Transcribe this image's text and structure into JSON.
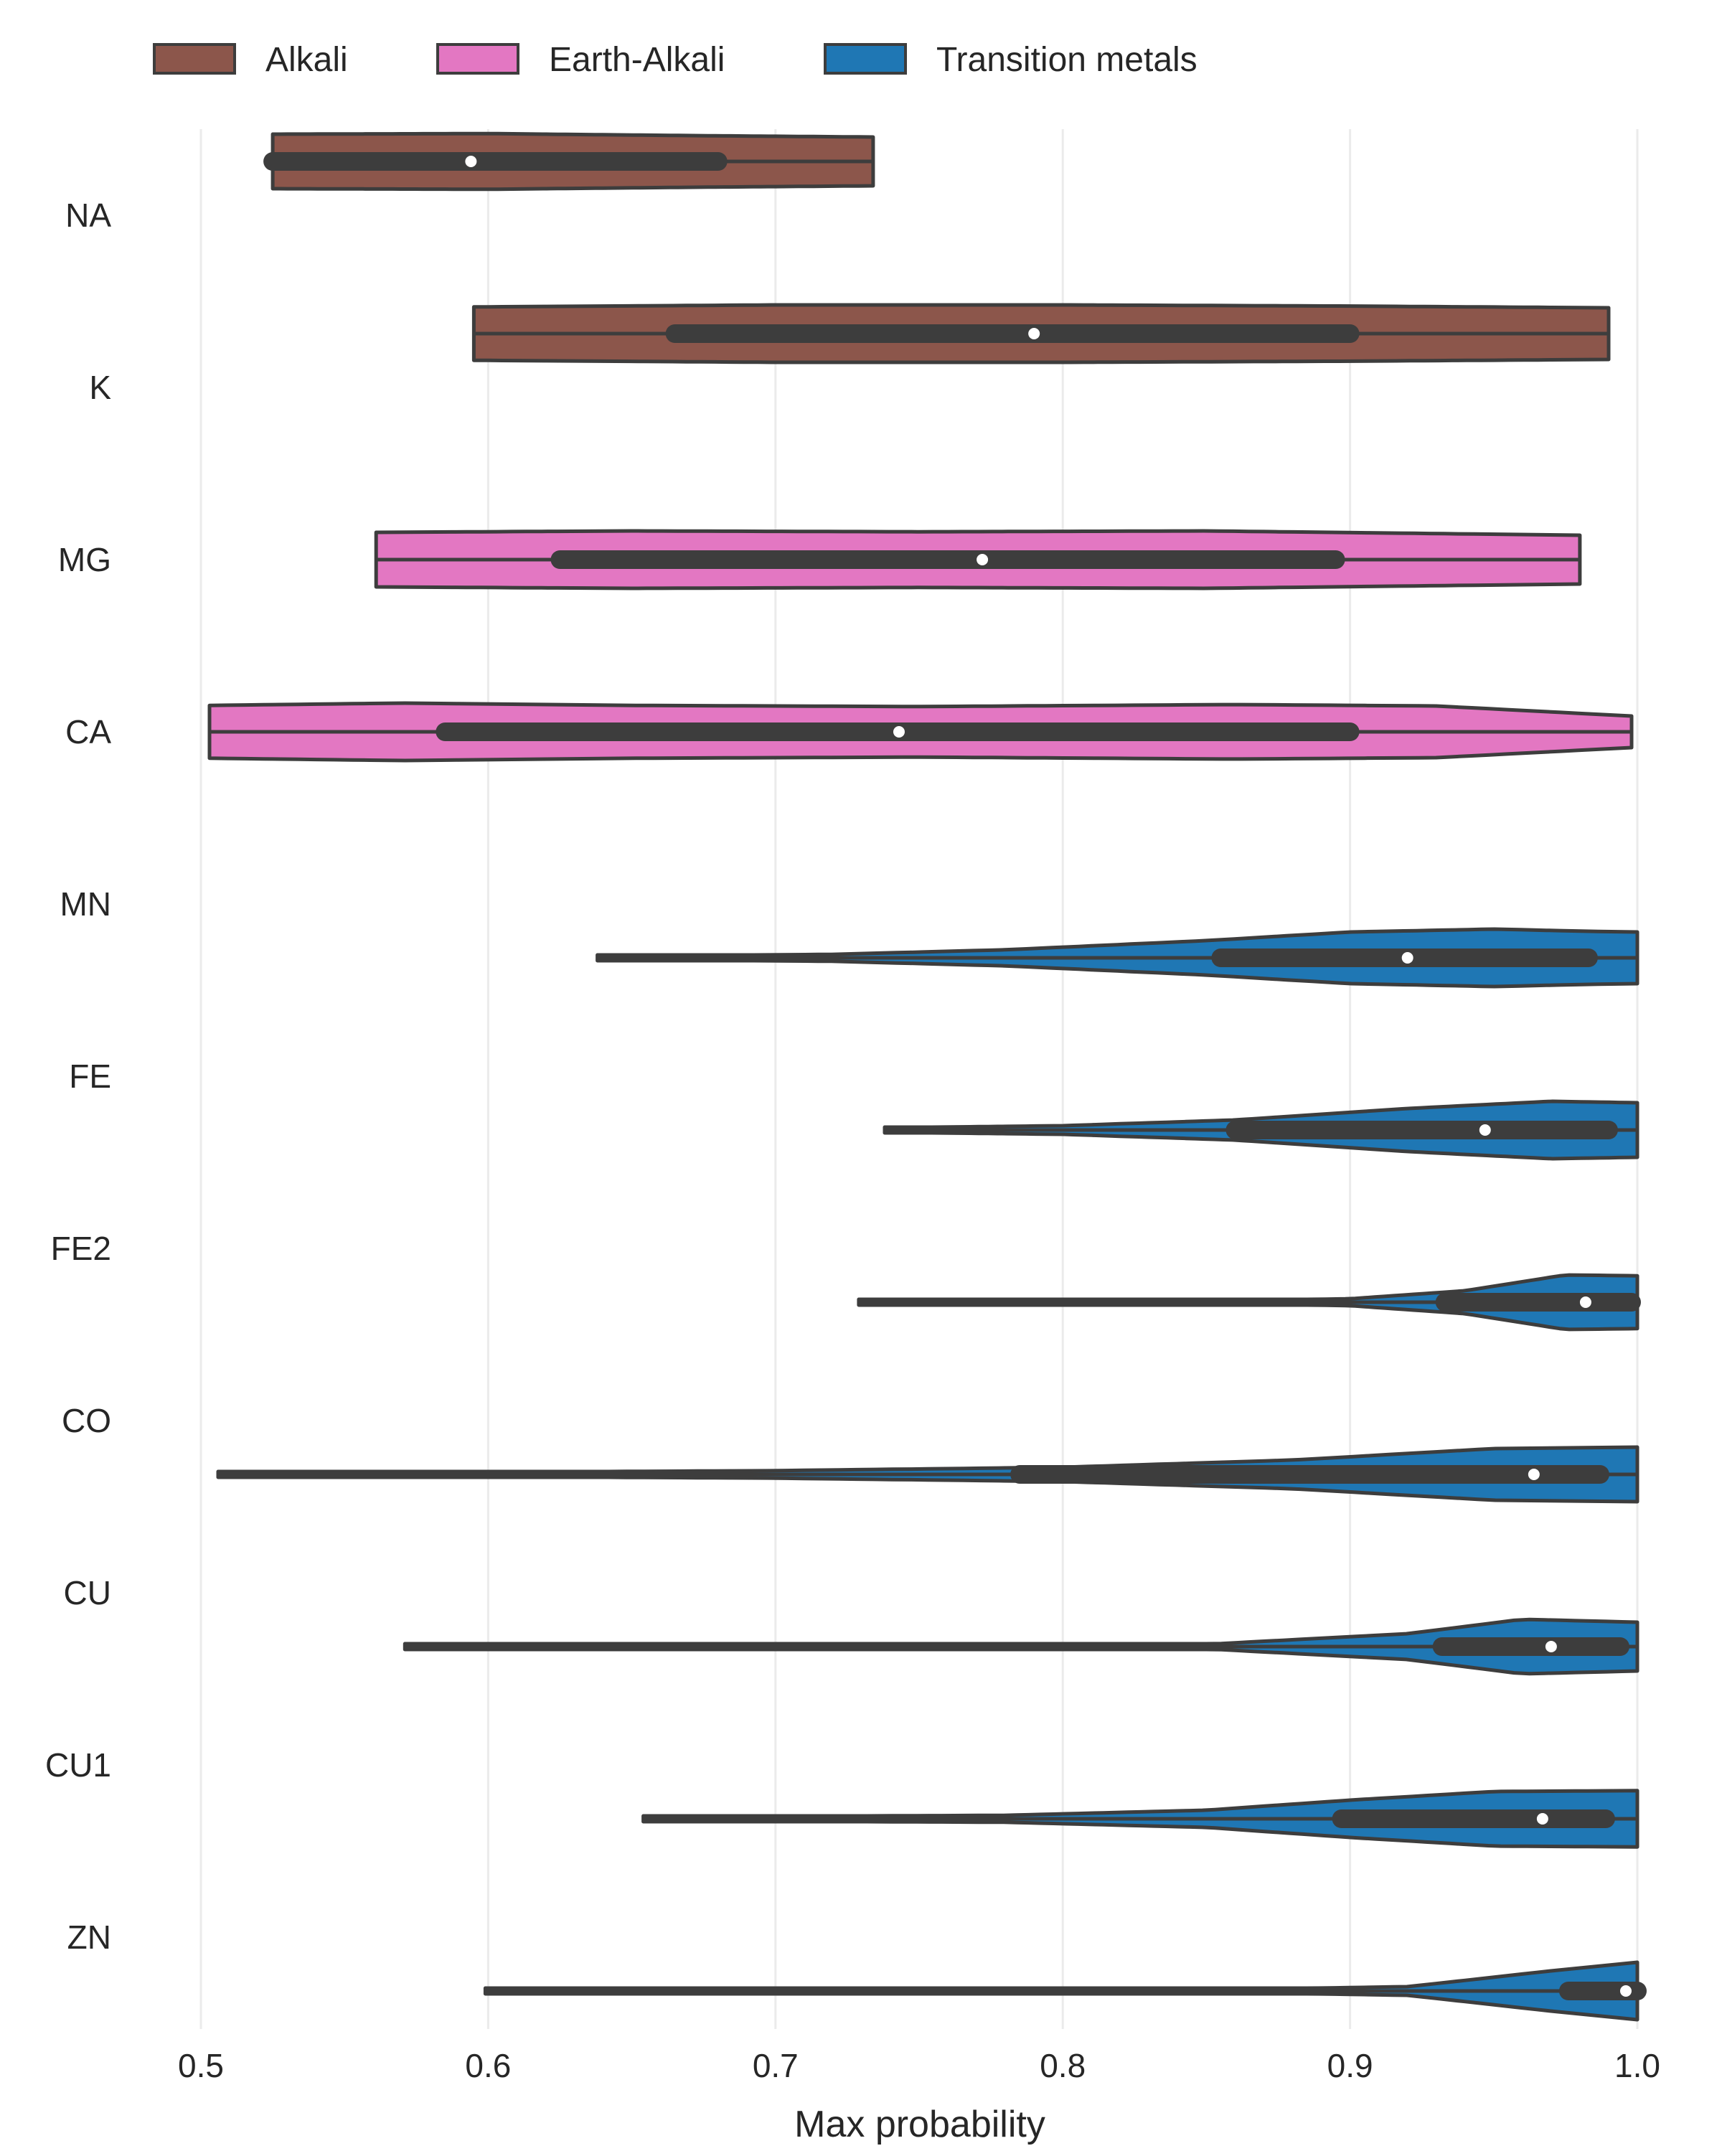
{
  "chart_data": {
    "type": "violin",
    "orientation": "horizontal",
    "xlabel": "Max probability",
    "ylabel": "",
    "xlim": [
      0.5,
      1.0
    ],
    "xticks": [
      0.5,
      0.6,
      0.7,
      0.8,
      0.9,
      1.0
    ],
    "xtick_labels": [
      "0.5",
      "0.6",
      "0.7",
      "0.8",
      "0.9",
      "1.0"
    ],
    "grid": "vertical",
    "legend": {
      "placement": "top-left",
      "entries": [
        {
          "label": "Alkali",
          "color": "#8c564b"
        },
        {
          "label": "Earth-Alkali",
          "color": "#e377c2"
        },
        {
          "label": "Transition metals",
          "color": "#1f77b4"
        }
      ]
    },
    "colors": {
      "Alkali": "#8c564b",
      "Earth-Alkali": "#e377c2",
      "Transition metals": "#1f77b4",
      "outline": "#3d3d3d",
      "grid": "#ebebeb"
    },
    "categories": [
      "NA",
      "K",
      "MG",
      "CA",
      "MN",
      "FE",
      "FE2",
      "CO",
      "CU",
      "CU1",
      "ZN"
    ],
    "series": [
      {
        "category": "NA",
        "group": "Alkali",
        "slot": 0,
        "min": 0.525,
        "q1": 0.525,
        "median": 0.594,
        "q3": 0.68,
        "max": 0.734,
        "density": [
          [
            0.525,
            0.95
          ],
          [
            0.6,
            0.97
          ],
          [
            0.67,
            0.9
          ],
          [
            0.734,
            0.85
          ]
        ]
      },
      {
        "category": "K",
        "group": "Alkali",
        "slot": 0,
        "min": 0.595,
        "q1": 0.665,
        "median": 0.79,
        "q3": 0.9,
        "max": 0.99,
        "density": [
          [
            0.595,
            0.93
          ],
          [
            0.7,
            1.0
          ],
          [
            0.8,
            1.0
          ],
          [
            0.9,
            0.96
          ],
          [
            0.99,
            0.9
          ]
        ]
      },
      {
        "category": "MG",
        "group": "Earth-Alkali",
        "slot": 1,
        "min": 0.561,
        "q1": 0.625,
        "median": 0.772,
        "q3": 0.895,
        "max": 0.98,
        "density": [
          [
            0.561,
            0.95
          ],
          [
            0.65,
            1.0
          ],
          [
            0.75,
            0.97
          ],
          [
            0.85,
            1.0
          ],
          [
            0.98,
            0.85
          ]
        ]
      },
      {
        "category": "CA",
        "group": "Earth-Alkali",
        "slot": 1,
        "min": 0.503,
        "q1": 0.585,
        "median": 0.743,
        "q3": 0.9,
        "max": 0.998,
        "density": [
          [
            0.503,
            0.92
          ],
          [
            0.57,
            1.0
          ],
          [
            0.65,
            0.92
          ],
          [
            0.75,
            0.88
          ],
          [
            0.86,
            0.95
          ],
          [
            0.93,
            0.9
          ],
          [
            0.998,
            0.55
          ]
        ]
      },
      {
        "category": "MN",
        "group": "Transition metals",
        "slot": 2,
        "min": 0.638,
        "q1": 0.855,
        "median": 0.92,
        "q3": 0.983,
        "max": 1.0,
        "density": [
          [
            0.638,
            0.06
          ],
          [
            0.72,
            0.12
          ],
          [
            0.78,
            0.28
          ],
          [
            0.85,
            0.6
          ],
          [
            0.9,
            0.9
          ],
          [
            0.95,
            1.0
          ],
          [
            0.985,
            0.92
          ],
          [
            1.0,
            0.9
          ]
        ]
      },
      {
        "category": "FE",
        "group": "Transition metals",
        "slot": 2,
        "min": 0.738,
        "q1": 0.86,
        "median": 0.947,
        "q3": 0.99,
        "max": 1.0,
        "density": [
          [
            0.738,
            0.08
          ],
          [
            0.8,
            0.15
          ],
          [
            0.86,
            0.35
          ],
          [
            0.92,
            0.75
          ],
          [
            0.97,
            1.0
          ],
          [
            1.0,
            0.95
          ]
        ]
      },
      {
        "category": "FE2",
        "group": "Transition metals",
        "slot": 2,
        "min": 0.729,
        "q1": 0.933,
        "median": 0.982,
        "q3": 0.998,
        "max": 1.0,
        "density": [
          [
            0.729,
            0.03
          ],
          [
            0.85,
            0.05
          ],
          [
            0.9,
            0.12
          ],
          [
            0.94,
            0.4
          ],
          [
            0.975,
            0.95
          ],
          [
            1.0,
            0.92
          ]
        ]
      },
      {
        "category": "CO",
        "group": "Transition metals",
        "slot": 2,
        "min": 0.506,
        "q1": 0.785,
        "median": 0.964,
        "q3": 0.987,
        "max": 1.0,
        "density": [
          [
            0.506,
            0.05
          ],
          [
            0.6,
            0.08
          ],
          [
            0.7,
            0.13
          ],
          [
            0.8,
            0.25
          ],
          [
            0.88,
            0.5
          ],
          [
            0.95,
            0.9
          ],
          [
            1.0,
            0.95
          ]
        ]
      },
      {
        "category": "CU",
        "group": "Transition metals",
        "slot": 2,
        "min": 0.571,
        "q1": 0.932,
        "median": 0.97,
        "q3": 0.994,
        "max": 1.0,
        "density": [
          [
            0.571,
            0.02
          ],
          [
            0.75,
            0.03
          ],
          [
            0.85,
            0.08
          ],
          [
            0.92,
            0.45
          ],
          [
            0.96,
            0.95
          ],
          [
            1.0,
            0.85
          ]
        ]
      },
      {
        "category": "CU1",
        "group": "Transition metals",
        "slot": 2,
        "min": 0.654,
        "q1": 0.897,
        "median": 0.967,
        "q3": 0.989,
        "max": 1.0,
        "density": [
          [
            0.654,
            0.07
          ],
          [
            0.78,
            0.12
          ],
          [
            0.85,
            0.3
          ],
          [
            0.9,
            0.65
          ],
          [
            0.95,
            0.95
          ],
          [
            1.0,
            0.98
          ]
        ]
      },
      {
        "category": "ZN",
        "group": "Transition metals",
        "slot": 2,
        "min": 0.599,
        "q1": 0.976,
        "median": 0.996,
        "q3": 1.0,
        "max": 1.0,
        "density": [
          [
            0.599,
            0.03
          ],
          [
            0.85,
            0.04
          ],
          [
            0.92,
            0.15
          ],
          [
            0.97,
            0.7
          ],
          [
            1.0,
            1.0
          ]
        ]
      }
    ]
  }
}
